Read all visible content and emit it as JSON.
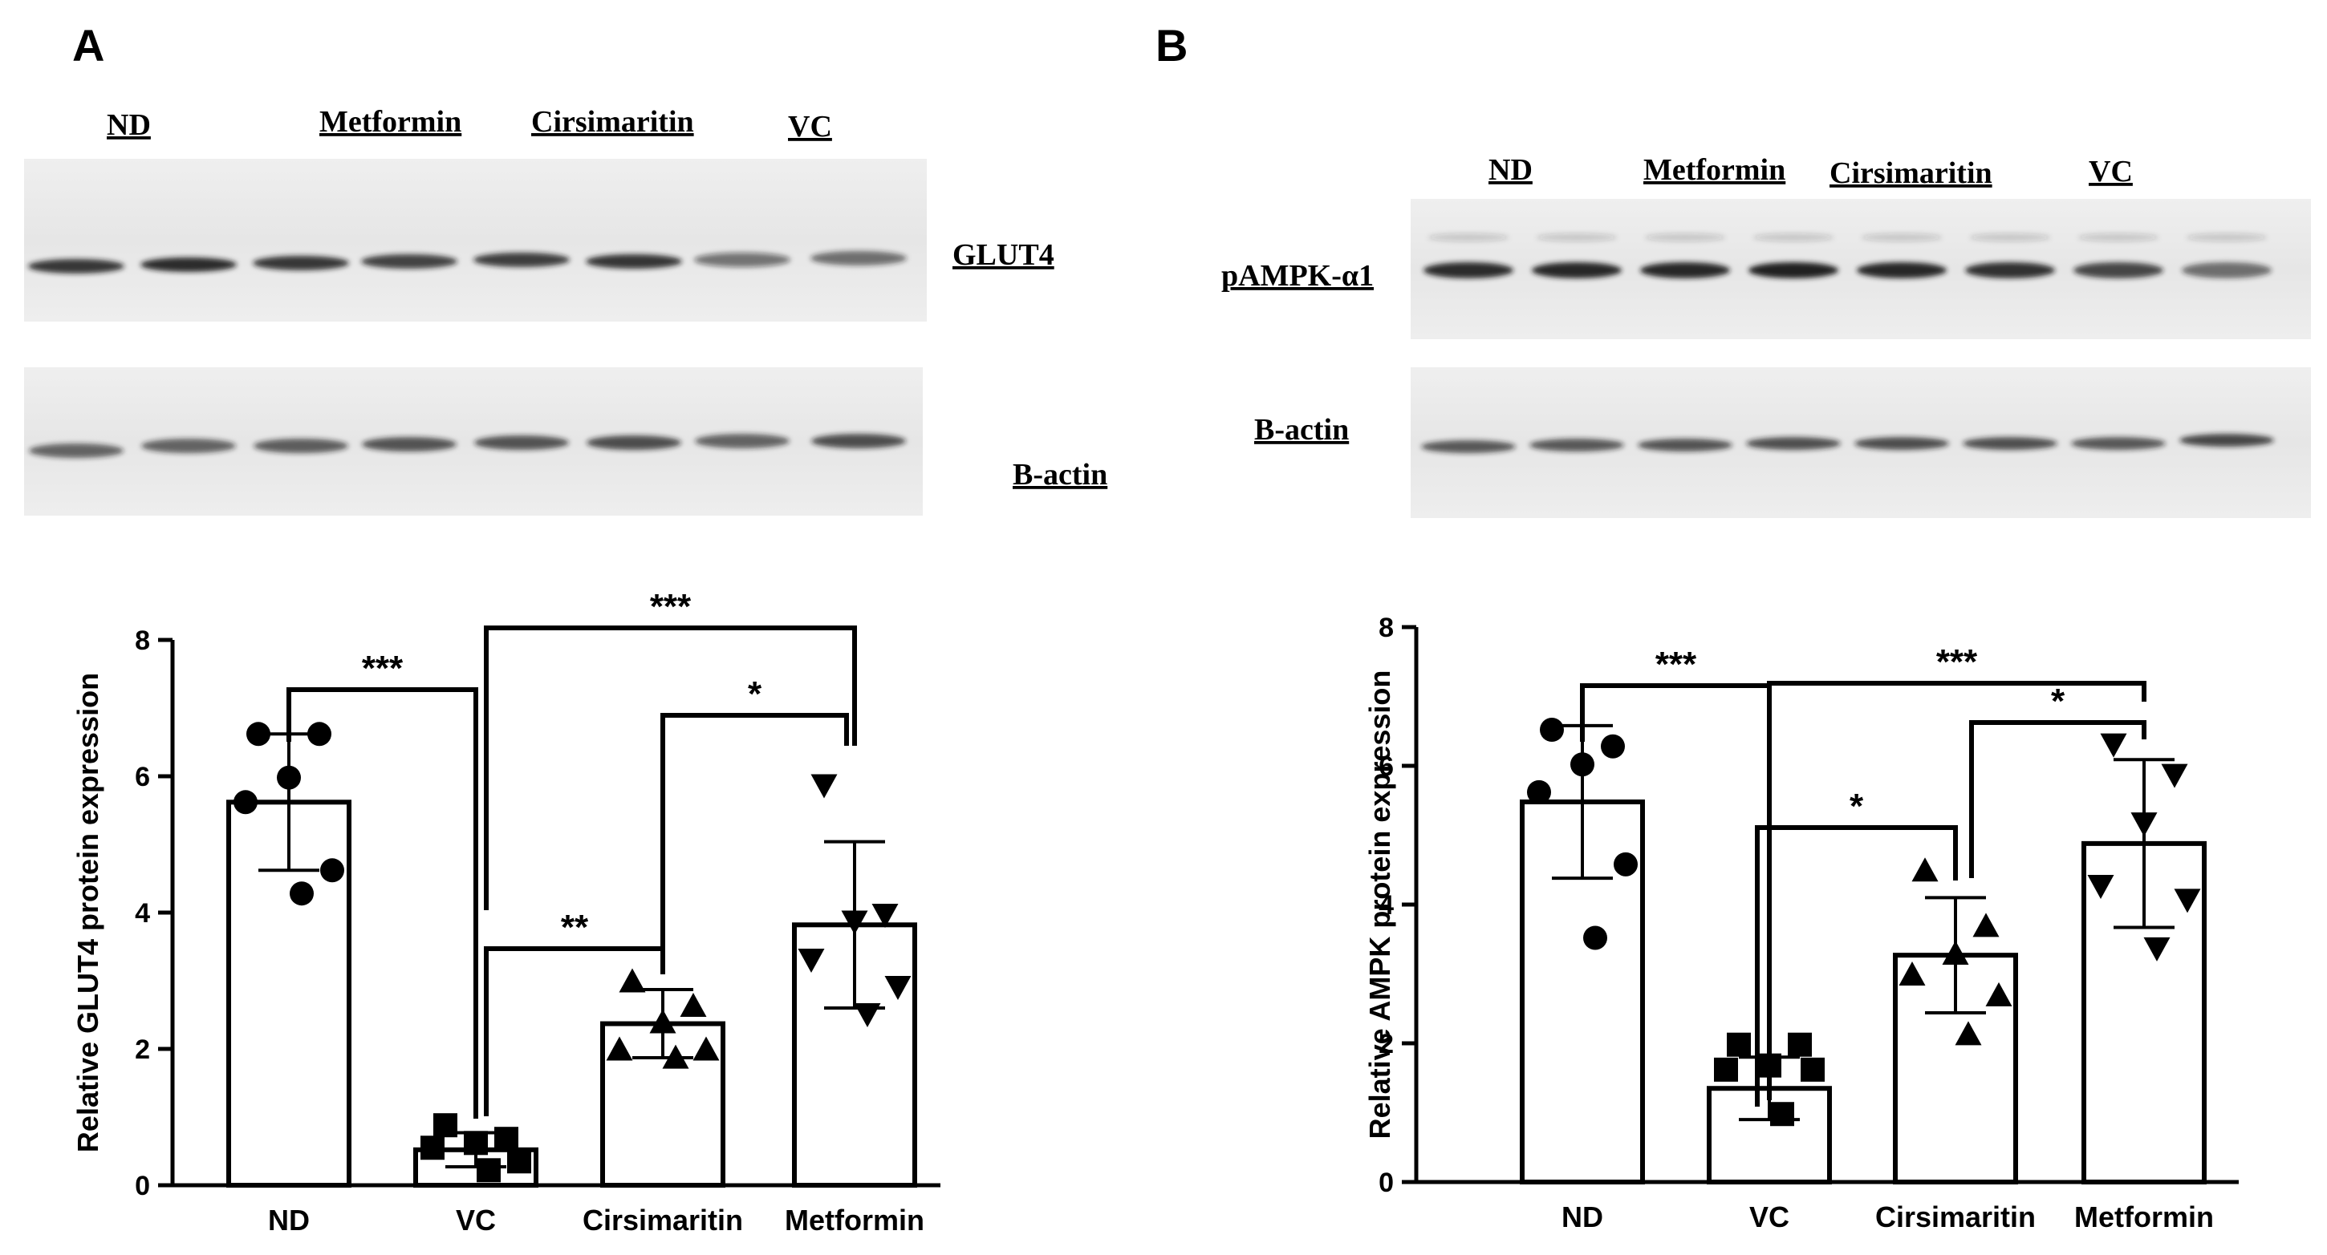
{
  "panels": [
    {
      "letter": "A",
      "blot": {
        "lane_labels": [
          "ND",
          "Metformin",
          "Cirsimaritin",
          "VC"
        ],
        "protein_labels": [
          "GLUT4",
          "B-actin"
        ]
      }
    },
    {
      "letter": "B",
      "blot": {
        "lane_labels": [
          "ND",
          "Metformin",
          "Cirsimaritin",
          "VC"
        ],
        "protein_labels": [
          "pAMPK-α1",
          "B-actin"
        ]
      }
    }
  ],
  "chart_data": [
    {
      "type": "bar",
      "title": "",
      "xlabel": "",
      "ylabel": "Relative GLUT4 protein expression",
      "ylim": [
        0,
        8
      ],
      "yticks": [
        0,
        2,
        4,
        6,
        8
      ],
      "categories": [
        "ND",
        "VC",
        "Cirsimaritin",
        "Metformin"
      ],
      "values": [
        5.62,
        0.52,
        2.37,
        3.82
      ],
      "errors": [
        1.0,
        0.25,
        0.5,
        1.22
      ],
      "points": [
        [
          6.62,
          6.62,
          5.98,
          5.62,
          4.62,
          4.28
        ],
        [
          0.88,
          0.68,
          0.62,
          0.55,
          0.35,
          0.22
        ],
        [
          2.98,
          2.62,
          2.38,
          1.98,
          1.98,
          1.86
        ],
        [
          5.88,
          3.98,
          3.88,
          3.32,
          2.92,
          2.52
        ]
      ],
      "markers": [
        "circle",
        "square",
        "triangle-up",
        "triangle-down"
      ],
      "grid": false,
      "significance": [
        {
          "from": 0,
          "to": 1,
          "label": "***"
        },
        {
          "from": 1,
          "to": 3,
          "label": "***"
        },
        {
          "from": 2,
          "to": 3,
          "label": "*"
        },
        {
          "from": 1,
          "to": 2,
          "label": "**"
        }
      ]
    },
    {
      "type": "bar",
      "title": "",
      "xlabel": "",
      "ylabel": "Relative AMPK protein expression",
      "ylim": [
        0,
        8
      ],
      "yticks": [
        0,
        2,
        4,
        6,
        8
      ],
      "categories": [
        "ND",
        "VC",
        "Cirsimaritin",
        "Metformin"
      ],
      "values": [
        5.48,
        1.35,
        3.27,
        4.88
      ],
      "errors": [
        1.1,
        0.45,
        0.83,
        1.21
      ],
      "points": [
        [
          6.52,
          6.28,
          6.02,
          5.62,
          4.58,
          3.52
        ],
        [
          1.98,
          1.98,
          1.68,
          1.62,
          1.62,
          0.98
        ],
        [
          4.48,
          3.68,
          3.28,
          2.98,
          2.68,
          2.12
        ],
        [
          6.32,
          5.88,
          5.18,
          4.28,
          4.08,
          3.38
        ]
      ],
      "markers": [
        "circle",
        "square",
        "triangle-up",
        "triangle-down"
      ],
      "grid": false,
      "significance": [
        {
          "from": 0,
          "to": 1,
          "label": "***"
        },
        {
          "from": 1,
          "to": 3,
          "label": "***"
        },
        {
          "from": 2,
          "to": 3,
          "label": "*"
        },
        {
          "from": 1,
          "to": 2,
          "label": "*"
        }
      ]
    }
  ]
}
